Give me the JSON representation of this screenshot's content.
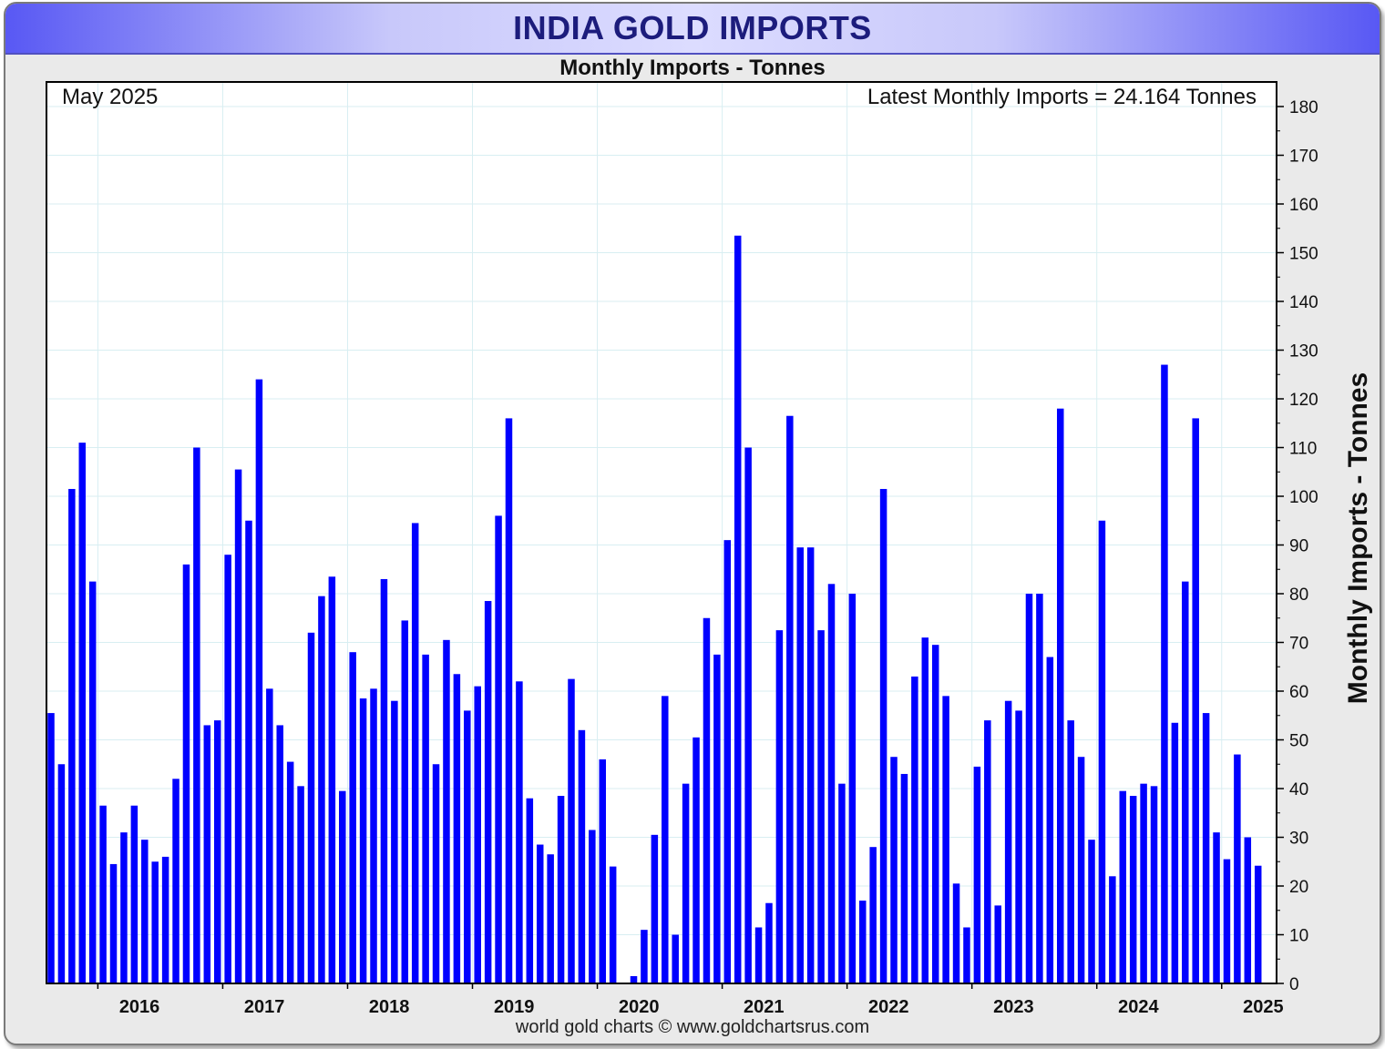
{
  "header": {
    "title": "INDIA GOLD IMPORTS",
    "subtitle": "Monthly Imports - Tonnes"
  },
  "annotations": {
    "date": "May 2025",
    "latest": "Latest Monthly Imports = 24.164 Tonnes"
  },
  "footer": {
    "credit": "world gold charts © www.goldchartsrus.com"
  },
  "colors": {
    "bar": "#0000ff",
    "grid": "#d8eef2",
    "title_text": "#1c1c7c"
  },
  "chart_data": {
    "type": "bar",
    "title": "INDIA GOLD IMPORTS",
    "subtitle": "Monthly Imports - Tonnes",
    "ylabel": "Monthly Imports - Tonnes",
    "xlabel": "",
    "ylim": [
      0,
      180
    ],
    "y_ticks": [
      0,
      10,
      20,
      30,
      40,
      50,
      60,
      70,
      80,
      90,
      100,
      110,
      120,
      130,
      140,
      150,
      160,
      170,
      180
    ],
    "x_tick_labels": [
      "2016",
      "2017",
      "2018",
      "2019",
      "2020",
      "2021",
      "2022",
      "2023",
      "2024",
      "2025"
    ],
    "y_axis_position": "right",
    "grid": true,
    "first_month": "2015-08",
    "last_month": "2025-05",
    "series": [
      {
        "values": [
          55.5,
          45,
          101.5,
          111,
          82.5,
          36.5,
          24.5,
          31,
          36.5,
          29.5,
          25,
          26,
          42,
          86,
          110,
          53,
          54,
          88,
          105.5,
          95,
          124,
          60.5,
          53,
          45.5,
          40.5,
          72,
          79.5,
          83.5,
          39.5,
          68,
          58.5,
          60.5,
          83,
          58,
          74.5,
          94.5,
          67.5,
          45,
          70.5,
          63.5,
          56,
          61,
          78.5,
          96,
          116,
          62,
          38,
          28.5,
          26.5,
          38.5,
          62.5,
          52,
          31.5,
          46,
          24,
          0,
          1.5,
          11,
          30.5,
          59,
          10,
          41,
          50.5,
          75,
          67.5,
          91,
          153.5,
          110,
          11.5,
          16.5,
          72.5,
          116.5,
          89.5,
          89.5,
          72.5,
          82,
          41,
          80,
          17,
          28,
          101.5,
          46.5,
          43,
          63,
          71,
          69.5,
          59,
          20.5,
          11.5,
          44.5,
          54,
          16,
          58,
          56,
          80,
          80,
          67,
          118,
          54,
          46.5,
          29.5,
          95,
          22,
          39.5,
          38.5,
          41,
          40.5,
          127,
          53.5,
          82.5,
          116,
          55.5,
          31,
          25.5,
          47,
          30,
          24.164
        ]
      }
    ]
  }
}
